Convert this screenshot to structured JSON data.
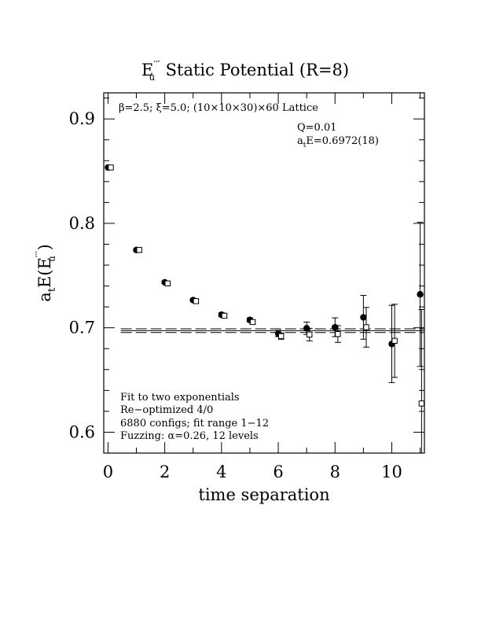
{
  "chart_data": {
    "type": "scatter",
    "title": {
      "symbol": "E",
      "symbol_sup": "′′′",
      "symbol_sub": "u",
      "rest": "  Static Potential (R=8)"
    },
    "xlabel": "time separation",
    "ylabel": {
      "prefix": "a",
      "prefix_sub": "t",
      "func": "E(E",
      "func_sup": "′′′",
      "func_sub": "u",
      "close": " )"
    },
    "xlim": [
      -0.15,
      11.15
    ],
    "ylim": [
      0.58,
      0.925
    ],
    "x_ticks": [
      0,
      2,
      4,
      6,
      8,
      10
    ],
    "y_ticks": [
      0.6,
      0.7,
      0.8,
      0.9
    ],
    "x_tick_labels": [
      "0",
      "2",
      "4",
      "6",
      "8",
      "10"
    ],
    "y_tick_labels": [
      "0.6",
      "0.7",
      "0.8",
      "0.9"
    ],
    "grid": false,
    "lattice_note": {
      "parts": [
        "β=2.5; ξ=5.0; (10×10×30)×60 Lattice"
      ]
    },
    "fit_info": {
      "q": "Q=0.01",
      "energy_prefix": "a",
      "energy_sub": "t",
      "energy_rest": "E=0.6972(18)"
    },
    "fit_details": [
      "Fit to two exponentials",
      "Re−optimized 4/0",
      "6880 configs; fit range 1−12",
      "Fuzzing: α=0.26, 12 levels"
    ],
    "fit_band": {
      "center": 0.6972,
      "upper": 0.699,
      "lower": 0.6954,
      "x_range": [
        0.45,
        11.15
      ]
    },
    "series": [
      {
        "marker": "filled-circle",
        "x": [
          0,
          1,
          2,
          3,
          4,
          5,
          6,
          7,
          8,
          9,
          10,
          11
        ],
        "y": [
          0.8535,
          0.7745,
          0.7435,
          0.7265,
          0.7125,
          0.7075,
          0.6945,
          0.6995,
          0.7005,
          0.71,
          0.6845,
          0.732
        ],
        "err": [
          0.0008,
          0.0012,
          0.0012,
          0.0015,
          0.002,
          0.002,
          0.003,
          0.006,
          0.009,
          0.021,
          0.037,
          0.069
        ]
      },
      {
        "marker": "open-square",
        "x": [
          0.1,
          1.1,
          2.1,
          3.1,
          4.1,
          5.1,
          6.1,
          7.1,
          8.1,
          9.1,
          10.1,
          11.05
        ],
        "y": [
          0.8535,
          0.7745,
          0.7425,
          0.7255,
          0.7115,
          0.7055,
          0.692,
          0.6935,
          0.694,
          0.7005,
          0.6875,
          0.6275
        ],
        "err": [
          0.0008,
          0.001,
          0.0012,
          0.0015,
          0.0018,
          0.002,
          0.003,
          0.006,
          0.008,
          0.019,
          0.035,
          0.09
        ]
      }
    ]
  }
}
